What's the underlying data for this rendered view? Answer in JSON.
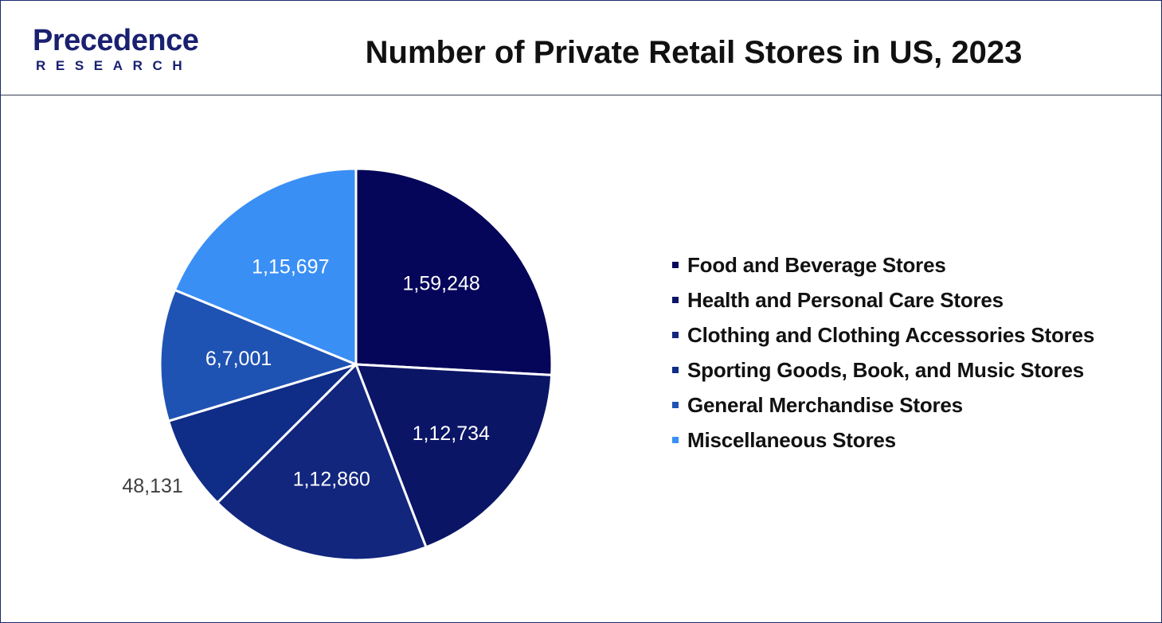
{
  "logo": {
    "word": "Precedence",
    "sub": "RESEARCH"
  },
  "header": {
    "title": "Number of Private Retail Stores in US, 2023"
  },
  "colors": {
    "frame": "#1b2a6b",
    "food": "#05055a",
    "health": "#0b1566",
    "clothing": "#12267e",
    "sporting": "#0f2c86",
    "general": "#1f53b3",
    "misc": "#3a8ff5"
  },
  "chart_data": {
    "type": "pie",
    "title": "Number of Private Retail Stores in US, 2023",
    "start_angle_deg": 0,
    "direction": "clockwise",
    "legend_position": "right",
    "slices": [
      {
        "name": "Food and Beverage Stores",
        "value": 159248,
        "label": "1,59,248",
        "color": "#05055a",
        "label_position": "inside"
      },
      {
        "name": "Health and Personal Care Stores",
        "value": 112734,
        "label": "1,12,734",
        "color": "#0b1566",
        "label_position": "inside"
      },
      {
        "name": "Clothing and Clothing Accessories Stores",
        "value": 112860,
        "label": "1,12,860",
        "color": "#12267e",
        "label_position": "inside"
      },
      {
        "name": "Sporting Goods, Book, and Music Stores",
        "value": 48131,
        "label": "48,131",
        "color": "#0f2c86",
        "label_position": "outside"
      },
      {
        "name": "General Merchandise Stores",
        "value": 67001,
        "label": "6,7,001",
        "color": "#1f53b3",
        "label_position": "inside"
      },
      {
        "name": "Miscellaneous Stores",
        "value": 115697,
        "label": "1,15,697",
        "color": "#3a8ff5",
        "label_position": "inside"
      }
    ]
  }
}
